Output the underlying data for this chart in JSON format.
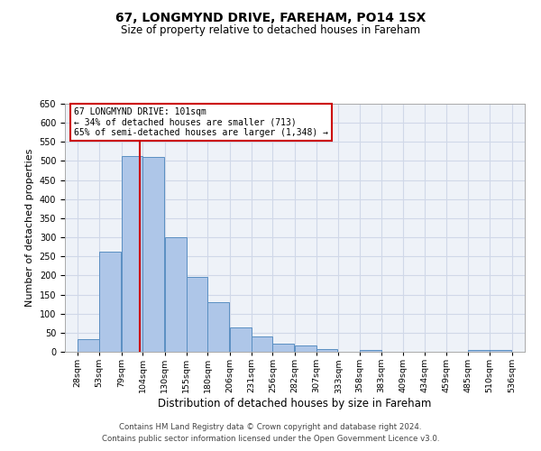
{
  "title": "67, LONGMYND DRIVE, FAREHAM, PO14 1SX",
  "subtitle": "Size of property relative to detached houses in Fareham",
  "xlabel": "Distribution of detached houses by size in Fareham",
  "ylabel": "Number of detached properties",
  "bar_left_edges": [
    28,
    53,
    79,
    104,
    130,
    155,
    180,
    206,
    231,
    256,
    282,
    307,
    333,
    358,
    383,
    409,
    434,
    459,
    485,
    510
  ],
  "bar_heights": [
    33,
    263,
    513,
    510,
    301,
    196,
    131,
    65,
    40,
    22,
    16,
    8,
    0,
    5,
    0,
    0,
    0,
    0,
    5,
    4
  ],
  "bin_width": 25,
  "bar_color": "#aec6e8",
  "bar_edge_color": "#5a8fc2",
  "property_line_x": 101,
  "ylim": [
    0,
    650
  ],
  "yticks": [
    0,
    50,
    100,
    150,
    200,
    250,
    300,
    350,
    400,
    450,
    500,
    550,
    600,
    650
  ],
  "x_tick_labels": [
    "28sqm",
    "53sqm",
    "79sqm",
    "104sqm",
    "130sqm",
    "155sqm",
    "180sqm",
    "206sqm",
    "231sqm",
    "256sqm",
    "282sqm",
    "307sqm",
    "333sqm",
    "358sqm",
    "383sqm",
    "409sqm",
    "434sqm",
    "459sqm",
    "485sqm",
    "510sqm",
    "536sqm"
  ],
  "x_tick_positions": [
    28,
    53,
    79,
    104,
    130,
    155,
    180,
    206,
    231,
    256,
    282,
    307,
    333,
    358,
    383,
    409,
    434,
    459,
    485,
    510,
    536
  ],
  "annotation_title": "67 LONGMYND DRIVE: 101sqm",
  "annotation_line1": "← 34% of detached houses are smaller (713)",
  "annotation_line2": "65% of semi-detached houses are larger (1,348) →",
  "annotation_box_color": "#ffffff",
  "annotation_box_edge_color": "#cc0000",
  "grid_color": "#d0d8e8",
  "background_color": "#eef2f8",
  "line_color": "#cc0000",
  "footer_line1": "Contains HM Land Registry data © Crown copyright and database right 2024.",
  "footer_line2": "Contains public sector information licensed under the Open Government Licence v3.0."
}
